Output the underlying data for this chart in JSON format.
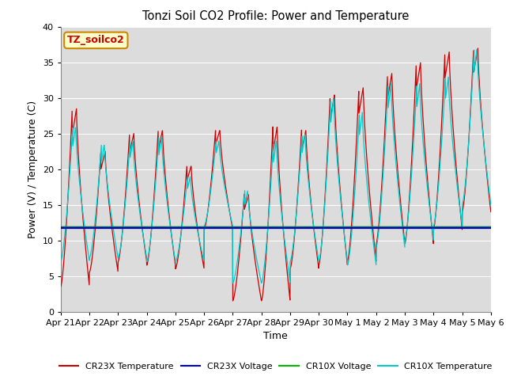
{
  "title": "Tonzi Soil CO2 Profile: Power and Temperature",
  "xlabel": "Time",
  "ylabel": "Power (V) / Temperature (C)",
  "ylim": [
    0,
    40
  ],
  "background_color": "#dcdcdc",
  "plot_bg_color": "#dcdcdc",
  "cr23x_temp_color": "#cc0000",
  "cr23x_volt_color": "#0000cc",
  "cr10x_volt_color": "#00bb00",
  "cr10x_temp_color": "#00cccc",
  "cr23x_volt_level": 11.75,
  "cr10x_volt_level": 11.85,
  "annotation_label": "TZ_soilco2",
  "annotation_bg": "#ffffcc",
  "annotation_border": "#cc8800",
  "x_tick_labels": [
    "Apr 21",
    "Apr 22",
    "Apr 23",
    "Apr 24",
    "Apr 25",
    "Apr 26",
    "Apr 27",
    "Apr 28",
    "Apr 29",
    "Apr 30",
    "May 1",
    "May 2",
    "May 3",
    "May 4",
    "May 5",
    "May 6"
  ],
  "legend_entries": [
    "CR23X Temperature",
    "CR23X Voltage",
    "CR10X Voltage",
    "CR10X Temperature"
  ],
  "legend_colors": [
    "#cc0000",
    "#0000cc",
    "#00bb00",
    "#00cccc"
  ],
  "cr23x_day_peaks": [
    28.5,
    22.5,
    25.0,
    25.5,
    20.5,
    25.5,
    16.5,
    26.0,
    25.5,
    30.5,
    31.5,
    33.5,
    35.0,
    36.5,
    37.0,
    37.0
  ],
  "cr23x_day_mins": [
    3.5,
    5.5,
    7.0,
    6.5,
    6.0,
    11.5,
    1.5,
    1.5,
    6.0,
    6.5,
    7.0,
    9.5,
    9.5,
    11.5,
    14.0,
    14.0
  ],
  "cr10x_day_peaks": [
    26.0,
    23.5,
    24.0,
    24.5,
    19.0,
    24.0,
    17.0,
    24.0,
    25.0,
    30.0,
    28.0,
    32.0,
    32.0,
    33.0,
    37.0,
    36.0
  ],
  "cr10x_day_mins": [
    7.0,
    7.5,
    7.5,
    7.0,
    7.0,
    12.0,
    4.0,
    4.0,
    7.0,
    7.0,
    6.5,
    9.0,
    10.0,
    12.0,
    15.0,
    15.0
  ],
  "n_days": 15,
  "pts_per_day": 144
}
